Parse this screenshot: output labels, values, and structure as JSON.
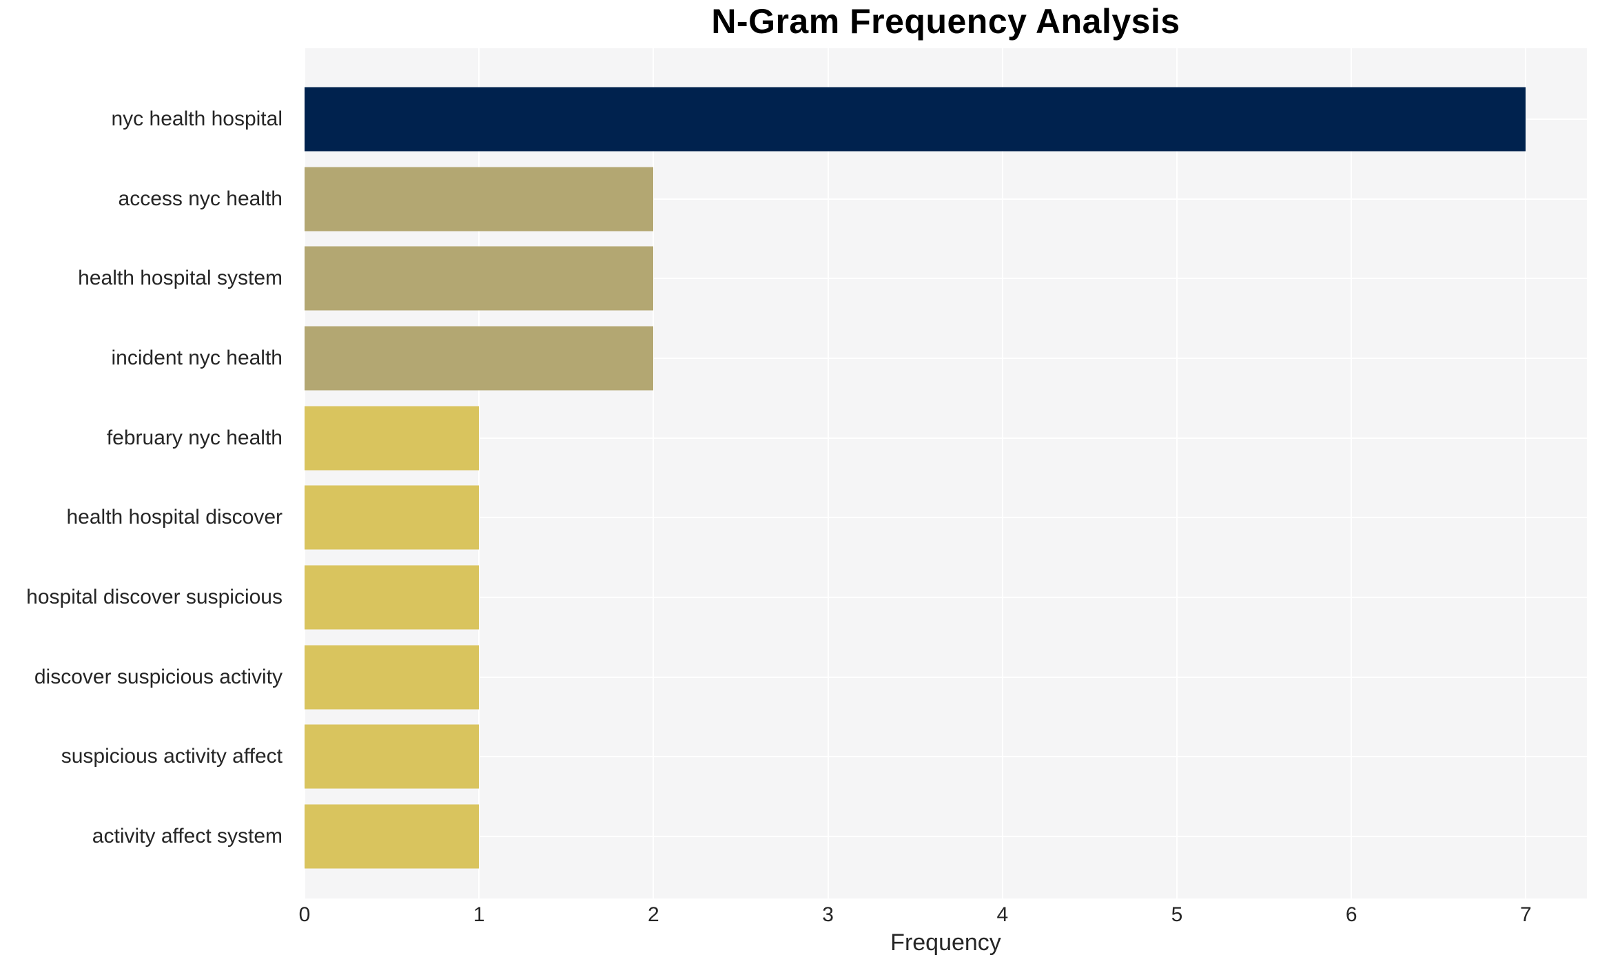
{
  "title": "N-Gram Frequency Analysis",
  "colors": {
    "figure_background": "#ffffff",
    "plot_background": "#f5f5f6",
    "gridline": "#ffffff",
    "text": "#262626",
    "title_text": "#000000",
    "bar_high": "#00224e",
    "bar_mid": "#b3a772",
    "bar_low": "#d9c45e"
  },
  "chart_data": {
    "type": "bar",
    "orientation": "horizontal",
    "title": "N-Gram Frequency Analysis",
    "xlabel": "Frequency",
    "ylabel": "",
    "categories": [
      "nyc health hospital",
      "access nyc health",
      "health hospital system",
      "incident nyc health",
      "february nyc health",
      "health hospital discover",
      "hospital discover suspicious",
      "discover suspicious activity",
      "suspicious activity affect",
      "activity affect system"
    ],
    "values": [
      7,
      2,
      2,
      2,
      1,
      1,
      1,
      1,
      1,
      1
    ],
    "bar_colors": [
      "#00224e",
      "#b3a772",
      "#b3a772",
      "#b3a772",
      "#d9c45e",
      "#d9c45e",
      "#d9c45e",
      "#d9c45e",
      "#d9c45e",
      "#d9c45e"
    ],
    "xticks": [
      0,
      1,
      2,
      3,
      4,
      5,
      6,
      7
    ],
    "xlim": [
      0,
      7.35
    ],
    "grid": true,
    "legend": false
  }
}
